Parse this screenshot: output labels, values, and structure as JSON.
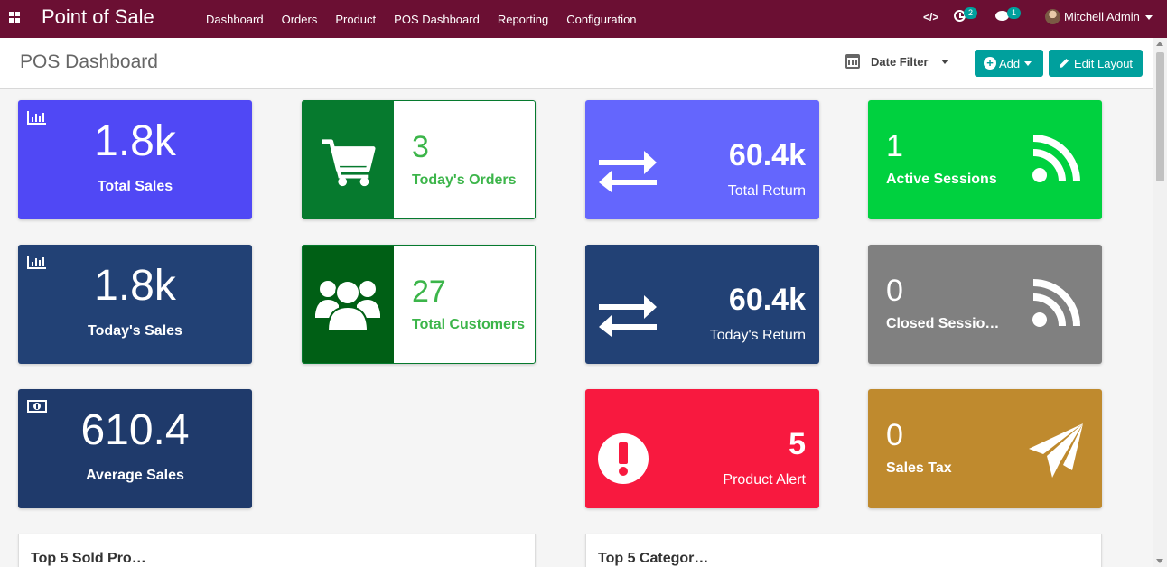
{
  "app": {
    "title": "Point of Sale",
    "menu": [
      "Dashboard",
      "Orders",
      "Product",
      "POS Dashboard",
      "Reporting",
      "Configuration"
    ],
    "code_icon": "</>",
    "activity_count": "2",
    "message_count": "1",
    "user_name": "Mitchell Admin"
  },
  "control_panel": {
    "title": "POS Dashboard",
    "date_filter_label": "Date Filter",
    "add_label": "Add",
    "edit_layout_label": "Edit Layout"
  },
  "tiles": {
    "total_sales": {
      "value": "1.8k",
      "label": "Total Sales",
      "color": "#5048f5"
    },
    "todays_orders": {
      "value": "3",
      "label": "Today's Orders",
      "color": "#067a2e"
    },
    "total_return": {
      "value": "60.4k",
      "label": "Total Return",
      "color": "#6466fd"
    },
    "active_sessions": {
      "value": "1",
      "label": "Active Sessions",
      "color": "#00d13f"
    },
    "todays_sales": {
      "value": "1.8k",
      "label": "Today's Sales",
      "color": "#224175"
    },
    "total_customers": {
      "value": "27",
      "label": "Total Customers",
      "color": "#005f15"
    },
    "todays_return": {
      "value": "60.4k",
      "label": "Today's Return",
      "color": "#224175"
    },
    "closed_sessions": {
      "value": "0",
      "label": "Closed Sessio…",
      "color": "#808080"
    },
    "average_sales": {
      "value": "610.4",
      "label": "Average Sales",
      "color": "#1f3a6b"
    },
    "product_alert": {
      "value": "5",
      "label": "Product Alert",
      "color": "#f8193f"
    },
    "sales_tax": {
      "value": "0",
      "label": "Sales Tax",
      "color": "#bf8a2e"
    }
  },
  "cards": {
    "top_products": "Top 5 Sold Pro…",
    "top_categories": "Top 5 Categor…"
  },
  "icons": [
    "apps-icon",
    "code-icon",
    "clock-icon",
    "chat-icon",
    "calendar-icon",
    "plus-circle-icon",
    "pencil-icon",
    "bar-chart-icon",
    "shopping-cart-icon",
    "exchange-icon",
    "rss-icon",
    "users-icon",
    "money-icon",
    "exclamation-icon",
    "paper-plane-icon"
  ]
}
